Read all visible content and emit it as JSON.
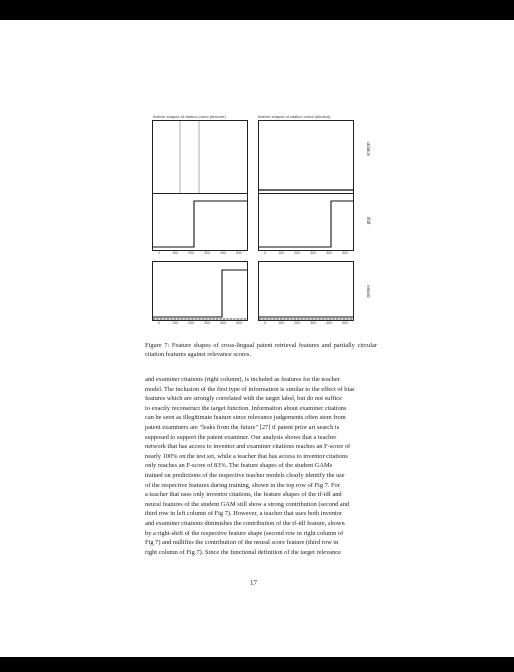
{
  "figure": {
    "column_titles": [
      "feature shapes of citation count (teacher)",
      "feature shapes of citation count (student)"
    ],
    "row_labels": [
      "citation",
      "tfidf",
      "neural"
    ],
    "top_tick_labels": [
      "citation",
      "examiner",
      "inventor",
      "family"
    ],
    "bottom_tick_labels": [
      "0",
      "100",
      "200",
      "300",
      "400",
      "500"
    ]
  },
  "caption": {
    "label": "Figure 7:",
    "text": "Feature shapes of cross-lingual patent retrieval features and partially circular citation features against relevance scores."
  },
  "body_lines": [
    "and examiner citations (right column), is included as features for the teacher",
    "model. The inclusion of the first type of information is similar to the effect of bias",
    "features which are strongly correlated with the target label, but do not suffice",
    "to exactly reconstruct the target function. Information about examiner citations",
    "can be seen as illegitimate feature since relevance judgements often stem from",
    "patent examiners are \"leaks from the future\" [27] if patent prior art search is",
    "supposed to support the patent examiner. Our analysis shows that a teacher",
    "network that has access to inventor and examiner citations reaches an F-score of",
    "nearly 100% on the test set, while a teacher that has access to inventor citations",
    "only reaches an F-score of 83%. The feature shapes of the student GAMs",
    "trained on predictions of the respective teacher models clearly identify the use",
    "of the respective features during training, shown in the top row of Fig 7. For",
    "a teacher that uses only inventor citations, the feature shapes of the tf-idf and",
    "neural features of the student GAM still show a strong contribution (second and",
    "third row in left column of Fig 7). However, a teacher that uses both inventor",
    "and examiner citations diminishes the contribution of the tf-idf feature, shown",
    "by a right-shift of the respective feature shape (second row in right column of",
    "Fig 7) and nullifies the contribution of the neural score feature (third row in",
    "right column of Fig 7). Since the functional definition of the target relevance"
  ],
  "page_number": "17"
}
